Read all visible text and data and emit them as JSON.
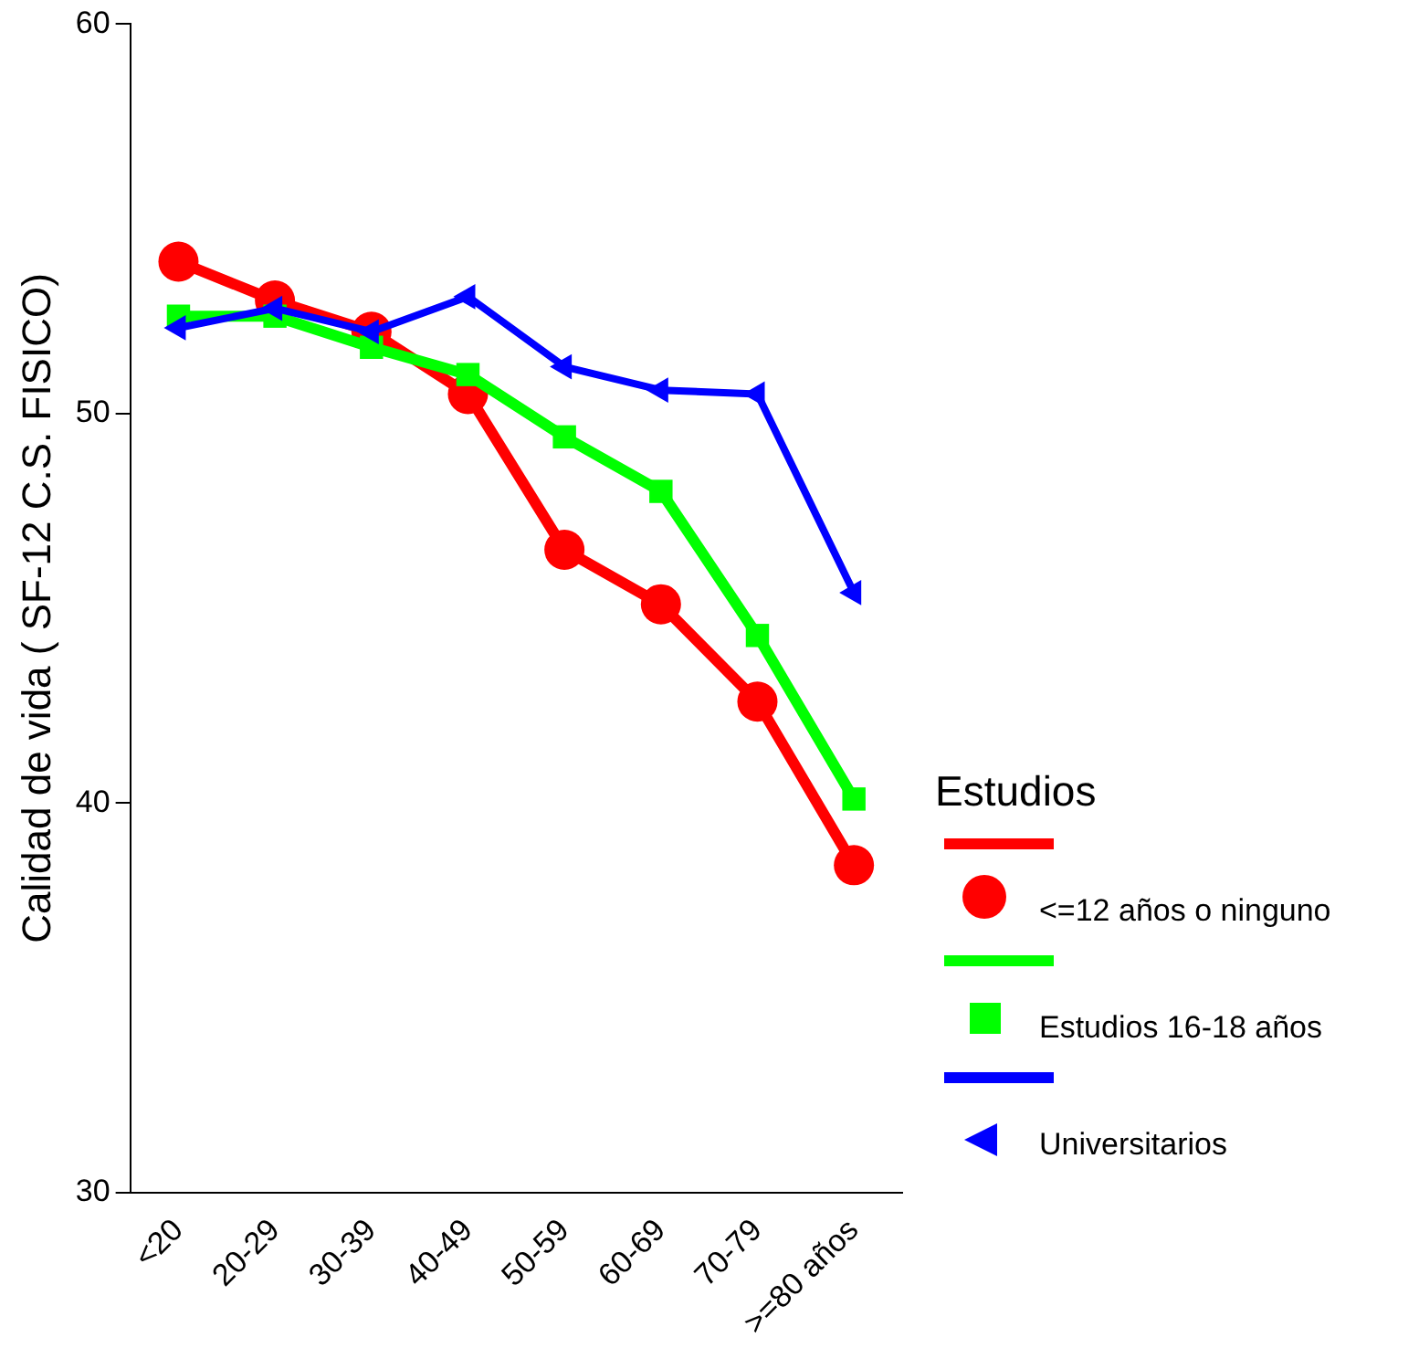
{
  "chart_data": {
    "type": "line",
    "ylabel": "Calidad de vida ( SF-12 C.S. FISICO)",
    "legend_title": "Estudios",
    "categories": [
      "<20",
      "20-29",
      "30-39",
      "40-49",
      "50-59",
      "60-69",
      "70-79",
      ">=80 años"
    ],
    "series": [
      {
        "name": "<=12 años o ninguno",
        "color": "#ff0000",
        "marker": "circle",
        "values": [
          53.9,
          52.9,
          52.1,
          50.5,
          46.5,
          45.1,
          42.6,
          38.4
        ]
      },
      {
        "name": "Estudios 16-18 años",
        "color": "#00ff00",
        "marker": "square",
        "values": [
          52.5,
          52.5,
          51.7,
          51.0,
          49.4,
          48.0,
          44.3,
          40.1
        ]
      },
      {
        "name": "Universitarios",
        "color": "#0000ff",
        "marker": "triangle",
        "values": [
          52.2,
          52.7,
          52.1,
          53.0,
          51.2,
          50.6,
          50.5,
          45.4
        ]
      }
    ],
    "ylim": [
      30,
      60
    ],
    "yticks": [
      30,
      40,
      50,
      60
    ],
    "grid": false,
    "legend": "right",
    "line_style": "solid"
  }
}
